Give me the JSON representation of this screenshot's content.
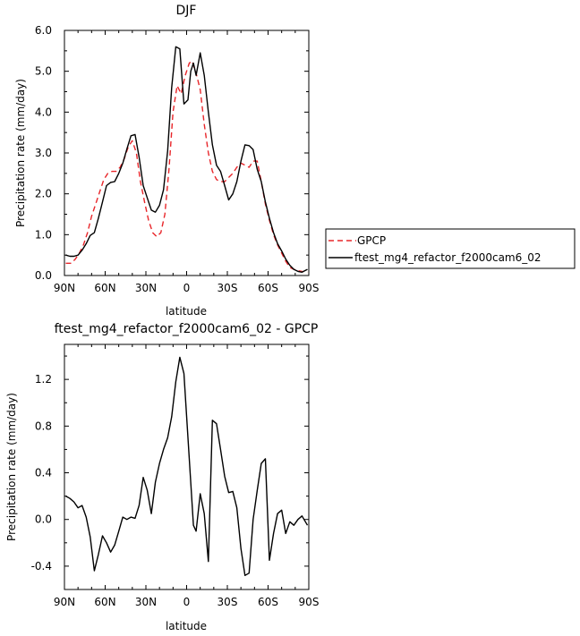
{
  "chart_data": [
    {
      "type": "line",
      "title": "DJF",
      "xlabel": "latitude",
      "ylabel": "Precipitation rate (mm/day)",
      "xlim": [
        90,
        -90
      ],
      "ylim": [
        0,
        6
      ],
      "xticks": [
        90,
        60,
        30,
        0,
        -30,
        -60,
        -90
      ],
      "xtick_labels": [
        "90N",
        "60N",
        "30N",
        "0",
        "30S",
        "60S",
        "90S"
      ],
      "yticks": [
        0,
        1,
        2,
        3,
        4,
        5,
        6
      ],
      "ytick_labels": [
        "0.0",
        "1.0",
        "2.0",
        "3.0",
        "4.0",
        "5.0",
        "6.0"
      ],
      "legend_position": "right",
      "series": [
        {
          "name": "GPCP",
          "color": "#e8262a",
          "dash": "dashed",
          "x": [
            89,
            85,
            82,
            79,
            76,
            73,
            70,
            67,
            64,
            61,
            58,
            55,
            52,
            49,
            46,
            43,
            40,
            37,
            34,
            31,
            28,
            25,
            22,
            19,
            16,
            13,
            10,
            7,
            4,
            1,
            -2,
            -4,
            -7,
            -10,
            -13,
            -16,
            -19,
            -22,
            -25,
            -28,
            -31,
            -34,
            -37,
            -40,
            -43,
            -46,
            -49,
            -52,
            -55,
            -58,
            -61,
            -64,
            -67,
            -70,
            -73,
            -76,
            -79,
            -82,
            -85,
            -89
          ],
          "y": [
            0.3,
            0.3,
            0.4,
            0.55,
            0.75,
            1.05,
            1.45,
            1.75,
            2.05,
            2.35,
            2.5,
            2.55,
            2.55,
            2.65,
            2.85,
            3.15,
            3.3,
            3.0,
            2.3,
            1.8,
            1.35,
            1.05,
            0.95,
            1.05,
            1.5,
            2.6,
            4.0,
            4.65,
            4.45,
            4.9,
            5.2,
            5.25,
            4.95,
            4.55,
            3.7,
            3.0,
            2.55,
            2.35,
            2.3,
            2.3,
            2.4,
            2.5,
            2.65,
            2.75,
            2.7,
            2.65,
            2.8,
            2.8,
            2.3,
            1.75,
            1.35,
            1.0,
            0.75,
            0.55,
            0.35,
            0.2,
            0.15,
            0.12,
            0.1,
            0.08
          ]
        },
        {
          "name": "ftest_mg4_refactor_f2000cam6_02",
          "color": "#000000",
          "dash": "solid",
          "x": [
            89,
            86,
            83,
            80,
            77,
            74,
            71,
            68,
            65,
            62,
            59,
            56,
            53,
            50,
            47,
            44,
            41,
            38,
            35,
            32,
            29,
            26,
            23,
            20,
            17,
            14,
            11,
            8,
            5,
            2,
            -1,
            -3,
            -5,
            -7,
            -10,
            -13,
            -16,
            -19,
            -22,
            -25,
            -28,
            -31,
            -34,
            -37,
            -40,
            -43,
            -46,
            -49,
            -52,
            -55,
            -58,
            -61,
            -64,
            -67,
            -70,
            -73,
            -76,
            -79,
            -82,
            -85,
            -89
          ],
          "y": [
            0.5,
            0.47,
            0.47,
            0.5,
            0.62,
            0.78,
            0.98,
            1.05,
            1.4,
            1.8,
            2.2,
            2.28,
            2.3,
            2.5,
            2.75,
            3.1,
            3.42,
            3.45,
            2.9,
            2.2,
            1.9,
            1.6,
            1.55,
            1.72,
            2.1,
            3.05,
            4.6,
            5.6,
            5.55,
            4.2,
            4.3,
            5.0,
            5.2,
            4.9,
            5.45,
            4.9,
            4.0,
            3.2,
            2.7,
            2.55,
            2.2,
            1.85,
            2.0,
            2.3,
            2.8,
            3.2,
            3.18,
            3.08,
            2.6,
            2.3,
            1.8,
            1.4,
            1.05,
            0.78,
            0.6,
            0.4,
            0.25,
            0.15,
            0.1,
            0.08,
            0.15
          ]
        }
      ]
    },
    {
      "type": "line",
      "title": "ftest_mg4_refactor_f2000cam6_02 - GPCP",
      "xlabel": "latitude",
      "ylabel": "Precipitation rate (mm/day)",
      "xlim": [
        90,
        -90
      ],
      "ylim": [
        -0.6,
        1.5
      ],
      "xticks": [
        90,
        60,
        30,
        0,
        -30,
        -60,
        -90
      ],
      "xtick_labels": [
        "90N",
        "60N",
        "30N",
        "0",
        "30S",
        "60S",
        "90S"
      ],
      "yticks": [
        -0.4,
        0.0,
        0.4,
        0.8,
        1.2
      ],
      "ytick_labels": [
        "-0.4",
        "0.0",
        "0.4",
        "0.8",
        "1.2"
      ],
      "series": [
        {
          "color": "#000000",
          "dash": "solid",
          "x": [
            89,
            86,
            83,
            80,
            77,
            74,
            71,
            68,
            65,
            62,
            59,
            56,
            53,
            50,
            47,
            44,
            41,
            38,
            35,
            32,
            29,
            26,
            23,
            20,
            17,
            14,
            11,
            8,
            5,
            2,
            -1,
            -3,
            -5,
            -7,
            -10,
            -13,
            -16,
            -19,
            -22,
            -25,
            -28,
            -31,
            -34,
            -37,
            -40,
            -43,
            -46,
            -49,
            -52,
            -55,
            -58,
            -61,
            -64,
            -67,
            -70,
            -73,
            -76,
            -79,
            -82,
            -85,
            -89
          ],
          "y": [
            0.2,
            0.18,
            0.15,
            0.1,
            0.12,
            0.02,
            -0.15,
            -0.44,
            -0.3,
            -0.14,
            -0.2,
            -0.28,
            -0.22,
            -0.1,
            0.02,
            0.0,
            0.02,
            0.01,
            0.12,
            0.36,
            0.25,
            0.05,
            0.32,
            0.48,
            0.6,
            0.7,
            0.88,
            1.18,
            1.39,
            1.25,
            0.7,
            0.32,
            -0.05,
            -0.1,
            0.22,
            0.05,
            -0.36,
            0.85,
            0.82,
            0.6,
            0.37,
            0.23,
            0.24,
            0.1,
            -0.25,
            -0.48,
            -0.46,
            0.0,
            0.25,
            0.48,
            0.52,
            -0.35,
            -0.12,
            0.05,
            0.08,
            -0.12,
            -0.02,
            -0.05,
            0.0,
            0.03,
            -0.05
          ]
        }
      ]
    }
  ]
}
